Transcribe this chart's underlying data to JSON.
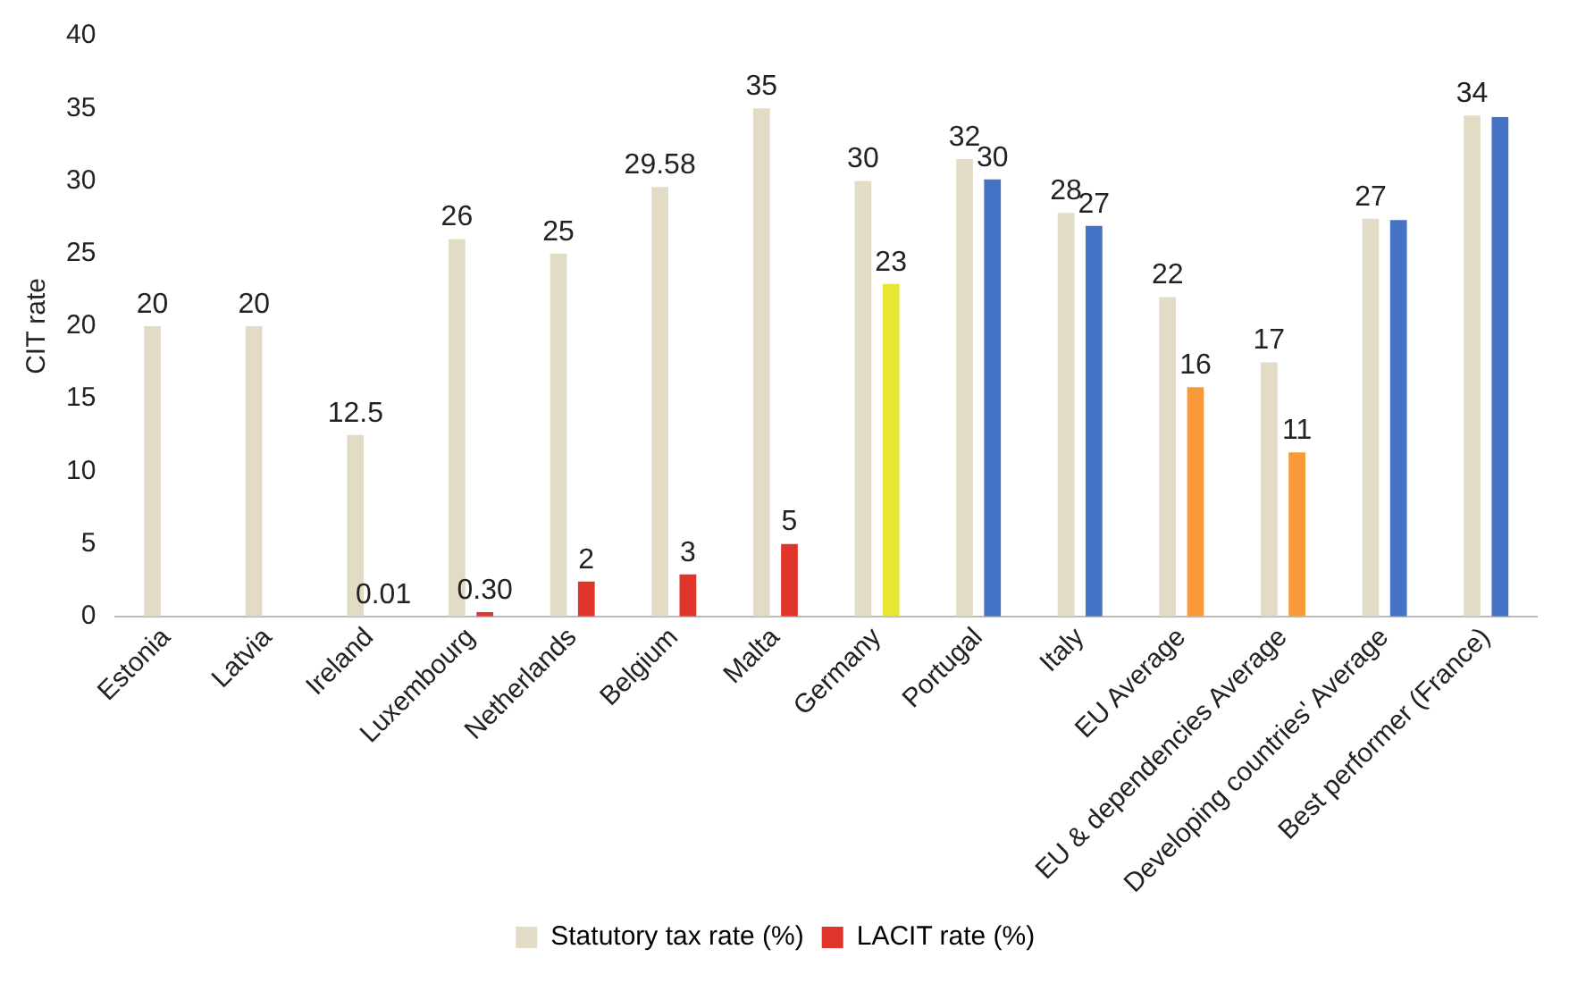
{
  "chart_data": {
    "type": "bar",
    "ylabel": "CIT rate",
    "categories": [
      "Estonia",
      "Latvia",
      "Ireland",
      "Luxembourg",
      "Netherlands",
      "Belgium",
      "Malta",
      "Germany",
      "Portugal",
      "Italy",
      "EU Average",
      "EU & dependencies Average",
      "Developing countries' Average",
      "Best performer (France)"
    ],
    "series": [
      {
        "name": "Statutory tax rate (%)",
        "color": "#e2dcc6",
        "values": [
          20,
          20,
          12.5,
          26,
          25,
          29.58,
          35,
          30,
          31.5,
          27.8,
          22,
          17.5,
          27.4,
          34.5
        ],
        "value_labels": [
          "20",
          "20",
          "12.5",
          "26",
          "25",
          "29.58",
          "35",
          "30",
          "32",
          "28",
          "22",
          "17",
          "27",
          "34"
        ]
      },
      {
        "name": "LACIT rate (%)",
        "color": "#e0352b",
        "colors": [
          "#e0352b",
          "#e0352b",
          "#e0352b",
          "#e0352b",
          "#e0352b",
          "#e0352b",
          "#e0352b",
          "#e6e633",
          "#4472c4",
          "#4472c4",
          "#f99a3a",
          "#f99a3a",
          "#4472c4",
          "#4472c4"
        ],
        "values": [
          null,
          null,
          0.01,
          0.3,
          2.4,
          2.9,
          5,
          22.9,
          30.1,
          26.9,
          15.8,
          11.3,
          27.3,
          34.4
        ],
        "value_labels": [
          null,
          null,
          "0.01",
          "0.30",
          "2",
          "3",
          "5",
          "23",
          "30",
          "27",
          "16",
          "11",
          null,
          null
        ]
      }
    ],
    "ylim": [
      0,
      40
    ],
    "yticks": [
      0,
      5,
      10,
      15,
      20,
      25,
      30,
      35,
      40
    ],
    "grid": false,
    "legend": "bottom"
  }
}
